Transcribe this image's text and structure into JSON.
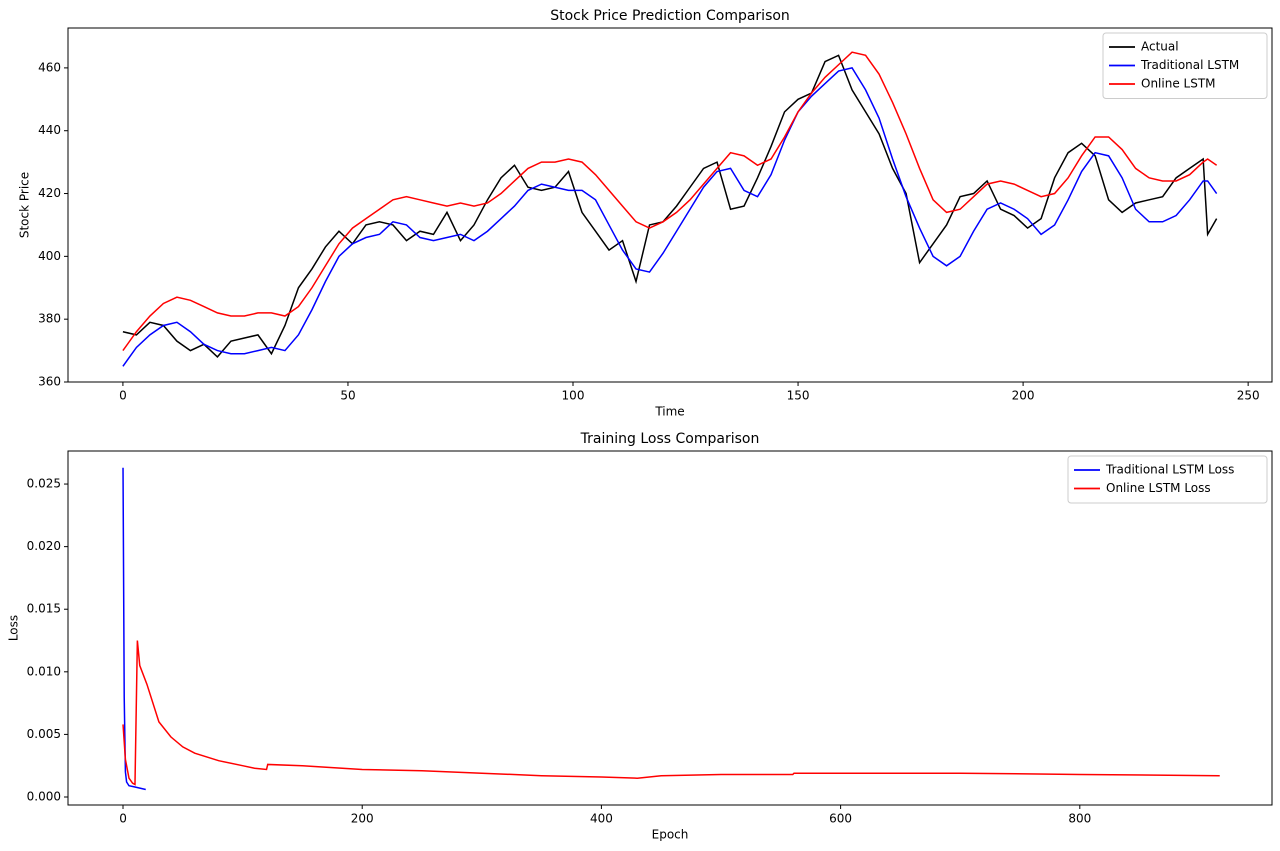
{
  "chart_data": [
    {
      "type": "line",
      "title": "Stock Price Prediction Comparison",
      "xlabel": "Time",
      "ylabel": "Stock Price",
      "x": [
        0,
        3,
        6,
        9,
        12,
        15,
        18,
        21,
        24,
        27,
        30,
        33,
        36,
        39,
        42,
        45,
        48,
        51,
        54,
        57,
        60,
        63,
        66,
        69,
        72,
        75,
        78,
        81,
        84,
        87,
        90,
        93,
        96,
        99,
        102,
        105,
        108,
        111,
        114,
        117,
        120,
        123,
        126,
        129,
        132,
        135,
        138,
        141,
        144,
        147,
        150,
        153,
        156,
        159,
        162,
        165,
        168,
        171,
        174,
        177,
        180,
        183,
        186,
        189,
        192,
        195,
        198,
        201,
        204,
        207,
        210,
        213,
        216,
        219,
        222,
        225,
        228,
        231,
        234,
        237,
        240,
        241,
        243
      ],
      "series": [
        {
          "name": "Actual",
          "color": "#000000",
          "values": [
            376,
            375,
            379,
            378,
            373,
            370,
            372,
            368,
            373,
            374,
            375,
            369,
            378,
            390,
            396,
            403,
            408,
            404,
            410,
            411,
            410,
            405,
            408,
            407,
            414,
            405,
            410,
            418,
            425,
            429,
            422,
            421,
            422,
            427,
            414,
            408,
            402,
            405,
            392,
            410,
            411,
            416,
            422,
            428,
            430,
            415,
            416,
            425,
            435,
            446,
            450,
            452,
            462,
            464,
            453,
            446,
            439,
            428,
            420,
            398,
            404,
            410,
            419,
            420,
            424,
            415,
            413,
            409,
            412,
            425,
            433,
            436,
            432,
            418,
            414,
            417,
            418,
            419,
            425,
            428,
            431,
            407,
            412
          ]
        },
        {
          "name": "Traditional LSTM",
          "color": "#0000ff",
          "values": [
            365,
            371,
            375,
            378,
            379,
            376,
            372,
            370,
            369,
            369,
            370,
            371,
            370,
            375,
            383,
            392,
            400,
            404,
            406,
            407,
            411,
            410,
            406,
            405,
            406,
            407,
            405,
            408,
            412,
            416,
            421,
            423,
            422,
            421,
            421,
            418,
            410,
            402,
            396,
            395,
            401,
            408,
            415,
            422,
            427,
            428,
            421,
            419,
            426,
            437,
            446,
            451,
            455,
            459,
            460,
            453,
            444,
            431,
            419,
            409,
            400,
            397,
            400,
            408,
            415,
            417,
            415,
            412,
            407,
            410,
            418,
            427,
            433,
            432,
            425,
            415,
            411,
            411,
            413,
            418,
            424,
            424,
            420
          ]
        },
        {
          "name": "Online LSTM",
          "color": "#ff0000",
          "values": [
            370,
            376,
            381,
            385,
            387,
            386,
            384,
            382,
            381,
            381,
            382,
            382,
            381,
            384,
            390,
            397,
            404,
            409,
            412,
            415,
            418,
            419,
            418,
            417,
            416,
            417,
            416,
            417,
            420,
            424,
            428,
            430,
            430,
            431,
            430,
            426,
            421,
            416,
            411,
            409,
            411,
            414,
            418,
            423,
            428,
            433,
            432,
            429,
            431,
            438,
            446,
            452,
            457,
            461,
            465,
            464,
            458,
            449,
            439,
            428,
            418,
            414,
            415,
            419,
            423,
            424,
            423,
            421,
            419,
            420,
            425,
            432,
            438,
            438,
            434,
            428,
            425,
            424,
            424,
            426,
            430,
            431,
            429
          ]
        }
      ],
      "xlim": [
        -12.2,
        255.3
      ],
      "ylim": [
        360,
        472.7
      ],
      "xticks": [
        0,
        50,
        100,
        150,
        200,
        250
      ],
      "yticks": [
        360,
        380,
        400,
        420,
        440,
        460
      ],
      "grid": false,
      "legend": "upper right"
    },
    {
      "type": "line",
      "title": "Training Loss Comparison",
      "xlabel": "Epoch",
      "ylabel": "Loss",
      "series": [
        {
          "name": "Traditional LSTM Loss",
          "color": "#0000ff",
          "x": [
            0,
            1,
            2,
            3,
            5,
            10,
            19
          ],
          "values": [
            0.0263,
            0.008,
            0.002,
            0.0012,
            0.0009,
            0.0008,
            0.0006
          ]
        },
        {
          "name": "Online LSTM Loss",
          "color": "#ff0000",
          "x": [
            0,
            2,
            5,
            8,
            10,
            12,
            14,
            20,
            30,
            40,
            50,
            60,
            80,
            100,
            110,
            120,
            121,
            150,
            200,
            250,
            300,
            350,
            400,
            430,
            450,
            500,
            560,
            561,
            600,
            700,
            800,
            917
          ],
          "values": [
            0.0058,
            0.003,
            0.0015,
            0.0011,
            0.001,
            0.0125,
            0.0105,
            0.009,
            0.006,
            0.0048,
            0.004,
            0.0035,
            0.0029,
            0.0025,
            0.0023,
            0.0022,
            0.0026,
            0.0025,
            0.0022,
            0.0021,
            0.0019,
            0.0017,
            0.0016,
            0.0015,
            0.0017,
            0.0018,
            0.0018,
            0.0019,
            0.0019,
            0.0019,
            0.0018,
            0.0017
          ]
        }
      ],
      "xlim": [
        -46,
        960.7
      ],
      "ylim": [
        -0.00064,
        0.02764
      ],
      "xticks": [
        0,
        200,
        400,
        600,
        800
      ],
      "yticks": [
        {
          "value": 0,
          "label": "0.000"
        },
        0.005,
        {
          "value": 0.01,
          "label": "0.010"
        },
        0.015,
        {
          "value": 0.02,
          "label": "0.020"
        },
        0.025
      ],
      "grid": false,
      "legend": "upper right"
    }
  ]
}
